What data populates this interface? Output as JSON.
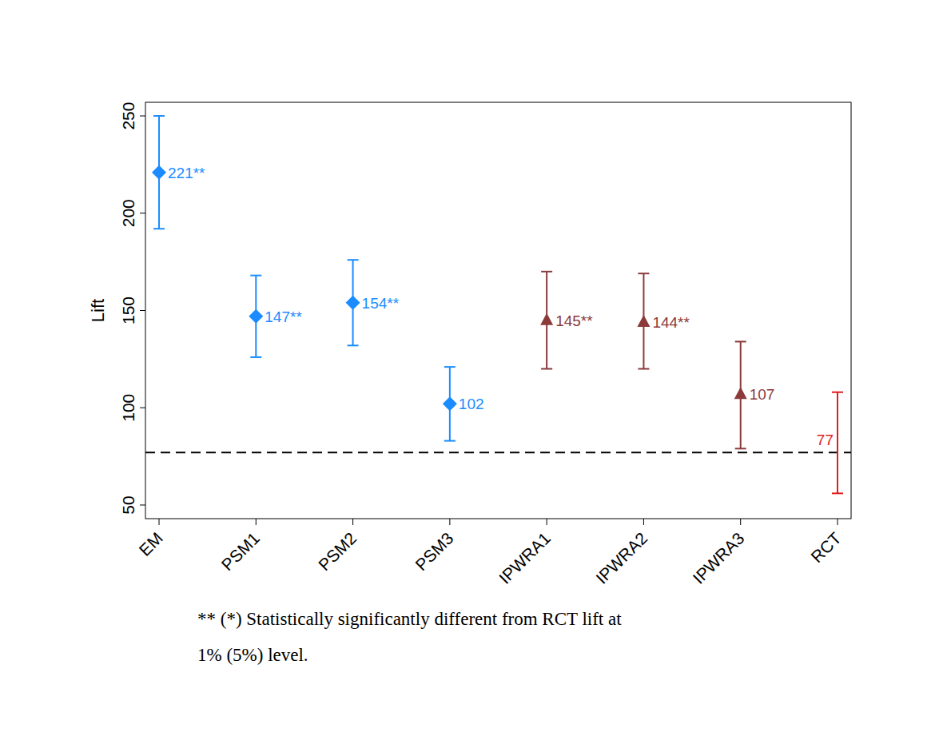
{
  "chart_data": {
    "type": "errorbar",
    "y_label": "Lift",
    "categories": [
      "EM",
      "PSM1",
      "PSM2",
      "PSM3",
      "IPWRA1",
      "IPWRA2",
      "IPWRA3",
      "RCT"
    ],
    "ylim": [
      43,
      257
    ],
    "yticks": [
      50,
      100,
      150,
      200,
      250
    ],
    "hline": 77,
    "data_labels": true,
    "series": [
      {
        "color": "#1a8cff",
        "marker": "diamond",
        "values": [
          221,
          147,
          154,
          102,
          null,
          null,
          null,
          null
        ],
        "value_labels": [
          "221**",
          "147**",
          "154**",
          "102",
          null,
          null,
          null,
          null
        ],
        "error_low": [
          192,
          126,
          132,
          83,
          null,
          null,
          null,
          null
        ],
        "error_high": [
          250,
          168,
          176,
          121,
          null,
          null,
          null,
          null
        ]
      },
      {
        "color": "#8b3a3a",
        "marker": "triangle",
        "values": [
          null,
          null,
          null,
          null,
          145,
          144,
          107,
          null
        ],
        "value_labels": [
          null,
          null,
          null,
          null,
          "145**",
          "144**",
          "107",
          null
        ],
        "error_low": [
          null,
          null,
          null,
          null,
          120,
          120,
          79,
          null
        ],
        "error_high": [
          null,
          null,
          null,
          null,
          170,
          169,
          134,
          null
        ]
      },
      {
        "color": "#e41a1c",
        "marker": "none",
        "values": [
          null,
          null,
          null,
          null,
          null,
          null,
          null,
          77
        ],
        "value_labels": [
          null,
          null,
          null,
          null,
          null,
          null,
          null,
          "77"
        ],
        "error_low": [
          null,
          null,
          null,
          null,
          null,
          null,
          null,
          56
        ],
        "error_high": [
          null,
          null,
          null,
          null,
          null,
          null,
          null,
          108
        ]
      }
    ],
    "note": [
      "** (*) Statistically significantly different from RCT lift at",
      "1% (5%) level."
    ]
  }
}
